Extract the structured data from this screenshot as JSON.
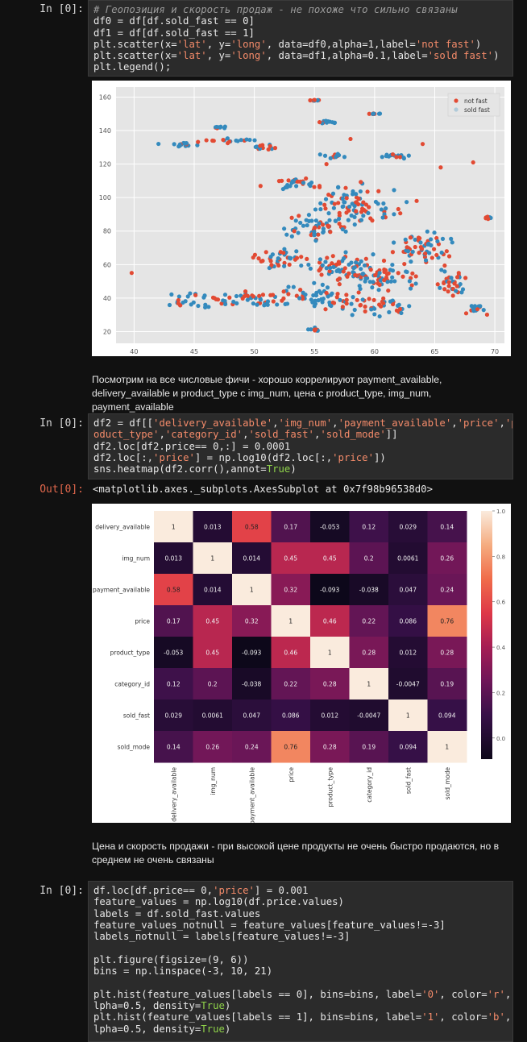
{
  "cells": {
    "scatter_cell": {
      "prompt": "In [0]:",
      "code": [
        [
          {
            "t": "# Геопозиция и скорость продаж - не похоже что сильно связаны",
            "c": "cm"
          }
        ],
        [
          {
            "t": "df0 = df[df.sold_fast == 0]"
          }
        ],
        [
          {
            "t": "df1 = df[df.sold_fast == 1]"
          }
        ],
        [
          {
            "t": "plt.scatter(x="
          },
          {
            "t": "'lat'",
            "c": "st"
          },
          {
            "t": ", y="
          },
          {
            "t": "'long'",
            "c": "st"
          },
          {
            "t": ", data=df0,alpha=1,label="
          },
          {
            "t": "'not fast'",
            "c": "st"
          },
          {
            "t": ")"
          }
        ],
        [
          {
            "t": "plt.scatter(x="
          },
          {
            "t": "'lat'",
            "c": "st"
          },
          {
            "t": ", y="
          },
          {
            "t": "'long'",
            "c": "st"
          },
          {
            "t": ", data=df1,alpha=0.1,label="
          },
          {
            "t": "'sold fast'",
            "c": "st"
          },
          {
            "t": ")"
          }
        ],
        [
          {
            "t": "plt.legend();"
          }
        ]
      ]
    },
    "markdown_1": [
      "Посмотрим на все числовые фичи - хорошо коррелируют payment_available,",
      "delivery_available и product_type с img_num, цена с product_type, img_num, payment_available"
    ],
    "heatmap_cell": {
      "prompt": "In [0]:",
      "out_prompt": "Out[0]:",
      "output_text": "<matplotlib.axes._subplots.AxesSubplot at 0x7f98b96538d0>",
      "code": [
        [
          {
            "t": "df2 = df[["
          },
          {
            "t": "'delivery_available'",
            "c": "st"
          },
          {
            "t": ","
          },
          {
            "t": "'img_num'",
            "c": "st"
          },
          {
            "t": ","
          },
          {
            "t": "'payment_available'",
            "c": "st"
          },
          {
            "t": ","
          },
          {
            "t": "'price'",
            "c": "st"
          },
          {
            "t": ","
          },
          {
            "t": "'pr",
            "c": "st"
          }
        ],
        [
          {
            "t": "oduct_type'",
            "c": "st"
          },
          {
            "t": ","
          },
          {
            "t": "'category_id'",
            "c": "st"
          },
          {
            "t": ","
          },
          {
            "t": "'sold_fast'",
            "c": "st"
          },
          {
            "t": ","
          },
          {
            "t": "'sold_mode'",
            "c": "st"
          },
          {
            "t": "]]"
          }
        ],
        [
          {
            "t": "df2.loc[df2.price== 0,:] = 0.0001"
          }
        ],
        [
          {
            "t": "df2.loc[:,"
          },
          {
            "t": "'price'",
            "c": "st"
          },
          {
            "t": "] = np.log10(df2.loc[:,"
          },
          {
            "t": "'price'",
            "c": "st"
          },
          {
            "t": "])"
          }
        ],
        [
          {
            "t": "sns.heatmap(df2.corr(),annot="
          },
          {
            "t": "True",
            "c": "kw"
          },
          {
            "t": ")"
          }
        ]
      ]
    },
    "markdown_2": [
      "Цена и скорость продажи - при высокой цене продукты не очень быстро продаются, но в",
      "среднем не очень связаны"
    ],
    "hist_cell": {
      "prompt": "In [0]:",
      "code": [
        [
          {
            "t": "df.loc[df.price== 0,"
          },
          {
            "t": "'price'",
            "c": "st"
          },
          {
            "t": "] = 0.001"
          }
        ],
        [
          {
            "t": "feature_values = np.log10(df.price.values)"
          }
        ],
        [
          {
            "t": "labels = df.sold_fast.values"
          }
        ],
        [
          {
            "t": "feature_values_notnull = feature_values[feature_values!=-3]"
          }
        ],
        [
          {
            "t": "labels_notnull = labels[feature_values!=-3]"
          }
        ],
        [],
        [
          {
            "t": "plt.figure(figsize=(9, 6))"
          }
        ],
        [
          {
            "t": "bins = np.linspace(-3, 10, 21)"
          }
        ],
        [],
        [
          {
            "t": "plt.hist(feature_values[labels == 0], bins=bins, label="
          },
          {
            "t": "'0'",
            "c": "st"
          },
          {
            "t": ", color="
          },
          {
            "t": "'r'",
            "c": "st"
          },
          {
            "t": ", a"
          }
        ],
        [
          {
            "t": "lpha=0.5, density="
          },
          {
            "t": "True",
            "c": "kw"
          },
          {
            "t": ")"
          }
        ],
        [
          {
            "t": "plt.hist(feature_values[labels == 1], bins=bins, label="
          },
          {
            "t": "'1'",
            "c": "st"
          },
          {
            "t": ", color="
          },
          {
            "t": "'b'",
            "c": "st"
          },
          {
            "t": ", a"
          }
        ],
        [
          {
            "t": "lpha=0.5, density="
          },
          {
            "t": "True",
            "c": "kw"
          },
          {
            "t": ")"
          }
        ]
      ]
    }
  },
  "chart_data": [
    {
      "type": "scatter",
      "xlim": [
        38.5,
        70.8
      ],
      "ylim": [
        13,
        166
      ],
      "xticks": [
        40,
        45,
        50,
        55,
        60,
        65,
        70
      ],
      "yticks": [
        20,
        40,
        60,
        80,
        100,
        120,
        140,
        160
      ],
      "grid": true,
      "legend_position": "top-right",
      "legend": [
        "not fast",
        "sold fast"
      ],
      "colors": {
        "not_fast": "#e24a33",
        "sold_fast": "#348abd",
        "background": "#e5e5e5"
      },
      "clusters": [
        {
          "x": 43.5,
          "y": 132,
          "sx": 1.4,
          "sy": 1.2
        },
        {
          "x": 47,
          "y": 142,
          "sx": 0.6,
          "sy": 0.6
        },
        {
          "x": 48,
          "y": 134,
          "sx": 2,
          "sy": 1.2
        },
        {
          "x": 51,
          "y": 130,
          "sx": 1,
          "sy": 1.2
        },
        {
          "x": 55,
          "y": 158,
          "sx": 0.3,
          "sy": 0.3
        },
        {
          "x": 56,
          "y": 145,
          "sx": 0.8,
          "sy": 0.8
        },
        {
          "x": 57,
          "y": 125,
          "sx": 0.8,
          "sy": 1.2
        },
        {
          "x": 60,
          "y": 150,
          "sx": 0.3,
          "sy": 0.3
        },
        {
          "x": 61.5,
          "y": 125,
          "sx": 1.5,
          "sy": 1.2
        },
        {
          "x": 54,
          "y": 108,
          "sx": 2,
          "sy": 3
        },
        {
          "x": 55.5,
          "y": 82,
          "sx": 2.5,
          "sy": 6
        },
        {
          "x": 52.5,
          "y": 62,
          "sx": 2,
          "sy": 5
        },
        {
          "x": 57,
          "y": 57,
          "sx": 3,
          "sy": 7
        },
        {
          "x": 61,
          "y": 52,
          "sx": 2.5,
          "sy": 6
        },
        {
          "x": 64,
          "y": 70,
          "sx": 2,
          "sy": 8
        },
        {
          "x": 45.5,
          "y": 39,
          "sx": 2.5,
          "sy": 3
        },
        {
          "x": 50,
          "y": 40,
          "sx": 2.5,
          "sy": 4
        },
        {
          "x": 55.5,
          "y": 40,
          "sx": 2.5,
          "sy": 6
        },
        {
          "x": 60.5,
          "y": 35,
          "sx": 2.5,
          "sy": 4
        },
        {
          "x": 66.5,
          "y": 49,
          "sx": 1,
          "sy": 8
        },
        {
          "x": 68.5,
          "y": 33,
          "sx": 0.8,
          "sy": 2
        },
        {
          "x": 55,
          "y": 21,
          "sx": 0.4,
          "sy": 0.8
        },
        {
          "x": 69.5,
          "y": 88,
          "sx": 0.2,
          "sy": 0.5
        },
        {
          "x": 58.5,
          "y": 96,
          "sx": 2.5,
          "sy": 10
        }
      ],
      "outliers": [
        [
          39.8,
          55
        ],
        [
          68.2,
          121
        ],
        [
          65.5,
          118
        ],
        [
          64,
          132
        ],
        [
          66,
          68
        ],
        [
          67,
          55
        ],
        [
          58,
          135
        ],
        [
          56,
          120
        ],
        [
          63.5,
          98
        ]
      ]
    },
    {
      "type": "heatmap",
      "labels": [
        "delivery_available",
        "img_num",
        "payment_available",
        "price",
        "product_type",
        "category_id",
        "sold_fast",
        "sold_mode"
      ],
      "matrix": [
        [
          1,
          0.013,
          0.58,
          0.17,
          -0.053,
          0.12,
          0.029,
          0.14
        ],
        [
          0.013,
          1,
          0.014,
          0.45,
          0.45,
          0.2,
          0.0061,
          0.26
        ],
        [
          0.58,
          0.014,
          1,
          0.32,
          -0.093,
          -0.038,
          0.047,
          0.24
        ],
        [
          0.17,
          0.45,
          0.32,
          1,
          0.46,
          0.22,
          0.086,
          0.76
        ],
        [
          -0.053,
          0.45,
          -0.093,
          0.46,
          1,
          0.28,
          0.012,
          0.28
        ],
        [
          0.12,
          0.2,
          -0.038,
          0.22,
          0.28,
          1,
          -0.0047,
          0.19
        ],
        [
          0.029,
          0.0061,
          0.047,
          0.086,
          0.012,
          -0.0047,
          1,
          0.094
        ],
        [
          0.14,
          0.26,
          0.24,
          0.76,
          0.28,
          0.19,
          0.094,
          1
        ]
      ],
      "annotations": [
        [
          "1",
          "0.013",
          "0.58",
          "0.17",
          "-0.053",
          "0.12",
          "0.029",
          "0.14"
        ],
        [
          "0.013",
          "1",
          "0.014",
          "0.45",
          "0.45",
          "0.2",
          "0.0061",
          "0.26"
        ],
        [
          "0.58",
          "0.014",
          "1",
          "0.32",
          "-0.093",
          "-0.038",
          "0.047",
          "0.24"
        ],
        [
          "0.17",
          "0.45",
          "0.32",
          "1",
          "0.46",
          "0.22",
          "0.086",
          "0.76"
        ],
        [
          "-0.053",
          "0.45",
          "-0.093",
          "0.46",
          "1",
          "0.28",
          "0.012",
          "0.28"
        ],
        [
          "0.12",
          "0.2",
          "-0.038",
          "0.22",
          "0.28",
          "1",
          "-0.0047",
          "0.19"
        ],
        [
          "0.029",
          "0.0061",
          "0.047",
          "0.086",
          "0.012",
          "-0.0047",
          "1",
          "0.094"
        ],
        [
          "0.14",
          "0.26",
          "0.24",
          "0.76",
          "0.28",
          "0.19",
          "0.094",
          "1"
        ]
      ],
      "colorbar_ticks": [
        "1.0",
        "0.8",
        "0.6",
        "0.4",
        "0.2",
        "0.0"
      ],
      "colorbar_range": [
        -0.093,
        1.0
      ],
      "colormap": "rocket"
    }
  ]
}
